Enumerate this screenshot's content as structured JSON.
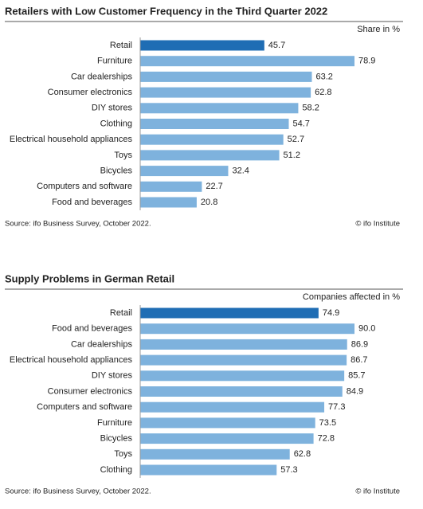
{
  "chart_data": [
    {
      "type": "bar",
      "orientation": "horizontal",
      "title": "Retailers with Low Customer Frequency in the Third Quarter 2022",
      "unit_label": "Share in %",
      "categories": [
        "Retail",
        "Furniture",
        "Car dealerships",
        "Consumer electronics",
        "DIY stores",
        "Clothing",
        "Electrical household appliances",
        "Toys",
        "Bicycles",
        "Computers and software",
        "Food and beverages"
      ],
      "values": [
        45.7,
        78.9,
        63.2,
        62.8,
        58.2,
        54.7,
        52.7,
        51.2,
        32.4,
        22.7,
        20.8
      ],
      "colors": [
        "#1f6db4",
        "#7eb2dd",
        "#7eb2dd",
        "#7eb2dd",
        "#7eb2dd",
        "#7eb2dd",
        "#7eb2dd",
        "#7eb2dd",
        "#7eb2dd",
        "#7eb2dd",
        "#7eb2dd"
      ],
      "source": "Source: ifo Business Survey, October 2022.",
      "credit": "© ifo Institute"
    },
    {
      "type": "bar",
      "orientation": "horizontal",
      "title": "Supply Problems in German Retail",
      "unit_label": "Companies affected in %",
      "categories": [
        "Retail",
        "Food and beverages",
        "Car dealerships",
        "Electrical household appliances",
        "DIY stores",
        "Consumer electronics",
        "Computers and software",
        "Furniture",
        "Bicycles",
        "Toys",
        "Clothing"
      ],
      "values": [
        74.9,
        90.0,
        86.9,
        86.7,
        85.7,
        84.9,
        77.3,
        73.5,
        72.8,
        62.8,
        57.3
      ],
      "value_labels": [
        "74.9",
        "90.0",
        "86.9",
        "86.7",
        "85.7",
        "84.9",
        "77.3",
        "73.5",
        "72.8",
        "62.8",
        "57.3"
      ],
      "colors": [
        "#1f6db4",
        "#7eb2dd",
        "#7eb2dd",
        "#7eb2dd",
        "#7eb2dd",
        "#7eb2dd",
        "#7eb2dd",
        "#7eb2dd",
        "#7eb2dd",
        "#7eb2dd",
        "#7eb2dd"
      ],
      "source": "Source: ifo Business Survey, October 2022.",
      "credit": "© ifo Institute"
    }
  ]
}
